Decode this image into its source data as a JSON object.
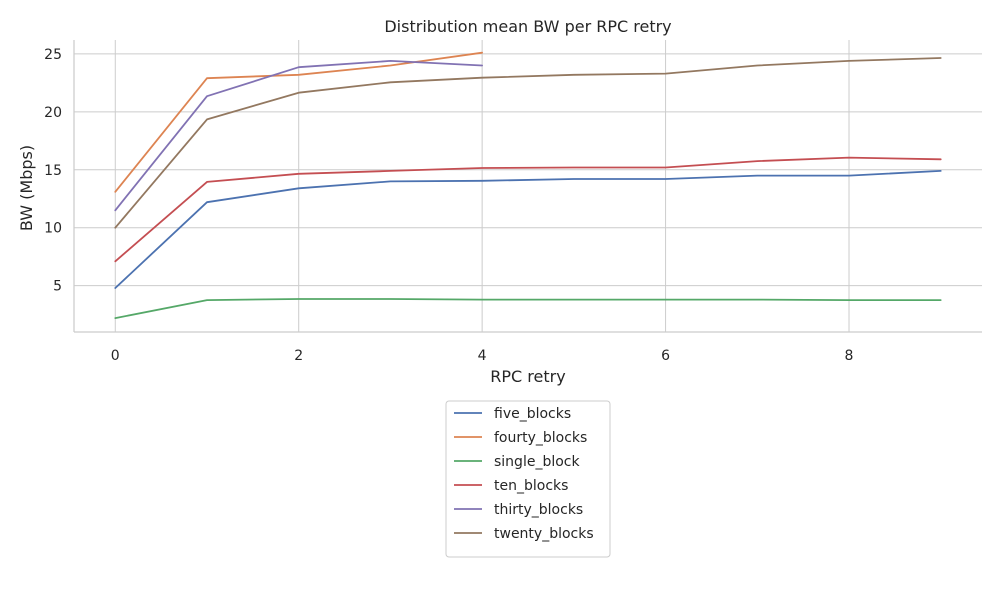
{
  "chart_data": {
    "type": "line",
    "title": "Distribution mean BW per RPC retry",
    "xlabel": "RPC retry",
    "ylabel": "BW (Mbps)",
    "xlim": [
      -0.45,
      9.45
    ],
    "ylim": [
      1.0,
      26.2
    ],
    "xticks": [
      0,
      2,
      4,
      6,
      8
    ],
    "yticks": [
      5,
      10,
      15,
      20,
      25
    ],
    "grid": true,
    "legend_position": "below",
    "series": [
      {
        "name": "five_blocks",
        "color": "#4c72b0",
        "x": [
          0,
          1,
          2,
          3,
          4,
          5,
          6,
          7,
          8,
          9
        ],
        "y": [
          4.8,
          12.2,
          13.4,
          14.0,
          14.05,
          14.2,
          14.2,
          14.5,
          14.5,
          14.9
        ]
      },
      {
        "name": "fourty_blocks",
        "color": "#dd8452",
        "x": [
          0,
          1,
          2,
          3,
          4
        ],
        "y": [
          13.1,
          22.9,
          23.2,
          24.0,
          25.1
        ]
      },
      {
        "name": "single_block",
        "color": "#55a868",
        "x": [
          0,
          1,
          2,
          3,
          4,
          5,
          6,
          7,
          8,
          9
        ],
        "y": [
          2.2,
          3.75,
          3.85,
          3.85,
          3.8,
          3.8,
          3.8,
          3.8,
          3.75,
          3.75
        ]
      },
      {
        "name": "ten_blocks",
        "color": "#c44e52",
        "x": [
          0,
          1,
          2,
          3,
          4,
          5,
          6,
          7,
          8,
          9
        ],
        "y": [
          7.1,
          13.95,
          14.65,
          14.9,
          15.15,
          15.2,
          15.2,
          15.75,
          16.05,
          15.9
        ]
      },
      {
        "name": "thirty_blocks",
        "color": "#8172b3",
        "x": [
          0,
          1,
          2,
          3,
          4
        ],
        "y": [
          11.5,
          21.35,
          23.85,
          24.4,
          24.0
        ]
      },
      {
        "name": "twenty_blocks",
        "color": "#937860",
        "x": [
          0,
          1,
          2,
          3,
          4,
          5,
          6,
          7,
          8,
          9
        ],
        "y": [
          10.0,
          19.35,
          21.65,
          22.55,
          22.95,
          23.2,
          23.3,
          24.0,
          24.4,
          24.65
        ]
      }
    ]
  }
}
